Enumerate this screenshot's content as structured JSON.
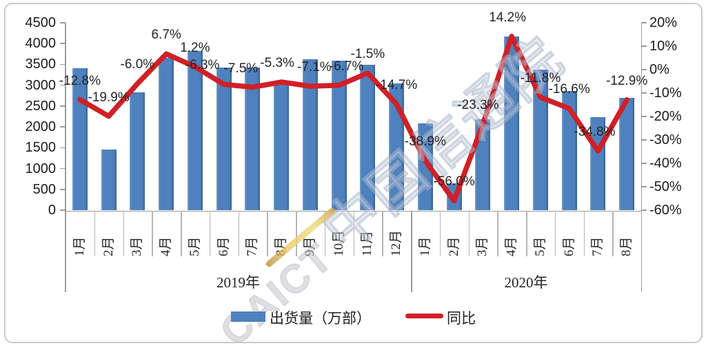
{
  "legend": {
    "bars": "出货量（万部）",
    "line": "同比"
  },
  "watermark": {
    "prefix": "CAICT",
    "text": "中国信通院"
  },
  "chart_data": {
    "type": "bar+line combo",
    "categories": [
      "1月",
      "2月",
      "3月",
      "4月",
      "5月",
      "6月",
      "7月",
      "8月",
      "9月",
      "10月",
      "11月",
      "12月",
      "1月",
      "2月",
      "3月",
      "4月",
      "5月",
      "6月",
      "7月",
      "8月"
    ],
    "groups": [
      {
        "label": "2019年",
        "start": 0,
        "end": 12
      },
      {
        "label": "2020年",
        "start": 12,
        "end": 20
      }
    ],
    "series_bar": {
      "name": "出货量（万部）",
      "values": [
        3404.8,
        1451.1,
        2837.3,
        3653.1,
        3829.4,
        3431.0,
        3419.9,
        3087.5,
        3623.6,
        3596.9,
        3484.2,
        3044.4,
        2081.3,
        638.4,
        2175.6,
        4172.8,
        3375.9,
        2863.0,
        2230.1,
        2690.7
      ]
    },
    "series_line": {
      "name": "同比",
      "values": [
        -12.8,
        -19.9,
        -6.0,
        6.7,
        1.2,
        -6.3,
        -7.5,
        -5.3,
        -7.1,
        -6.7,
        -1.5,
        -14.7,
        -38.9,
        -56.0,
        -23.3,
        14.2,
        -11.8,
        -16.6,
        -34.8,
        -12.9
      ],
      "labels": [
        "-12.8%",
        "-19.9%",
        "-6.0%",
        "6.7%",
        "1.2%",
        "-6.3%",
        "-7.5%",
        "-5.3%",
        "-7.1%",
        "-6.7%",
        "-1.5%",
        "-14.7%",
        "-38.9%",
        "-56.0%",
        "-23.3%",
        "14.2%",
        "-11.8%",
        "-16.6%",
        "-34.8%",
        "-12.9%"
      ]
    },
    "left_axis": {
      "min": 0,
      "max": 4500,
      "step": 500,
      "tick_labels": [
        "4500",
        "4000",
        "3500",
        "3000",
        "2500",
        "2000",
        "1500",
        "1000",
        "500",
        "0"
      ]
    },
    "right_axis": {
      "min": -60,
      "max": 20,
      "step": 10,
      "tick_labels": [
        "20%",
        "10%",
        "0%",
        "-10%",
        "-20%",
        "-30%",
        "-40%",
        "-50%",
        "-60%"
      ]
    },
    "grid": "off",
    "legend_position": "bottom",
    "colors": {
      "bar": "#4e81bd",
      "line": "#d02027"
    }
  }
}
